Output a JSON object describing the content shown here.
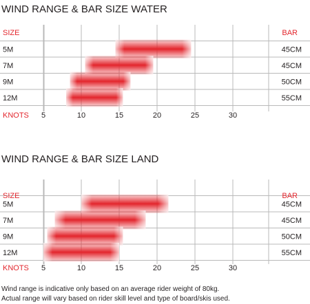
{
  "colors": {
    "accent": "#e3262d",
    "grid": "#b9b9b9",
    "text": "#231f20"
  },
  "chart_data": [
    {
      "type": "bar",
      "title": "WIND RANGE & BAR SIZE WATER",
      "row_header": "SIZE",
      "bar_header": "BAR",
      "xlabel": "KNOTS",
      "xlim": [
        0,
        30
      ],
      "x_ticks": [
        5,
        10,
        15,
        20,
        25,
        30
      ],
      "categories": [
        "5M",
        "7M",
        "9M",
        "12M"
      ],
      "ranges": [
        [
          14.5,
          24.5
        ],
        [
          10.5,
          19.5
        ],
        [
          8.5,
          16.5
        ],
        [
          8,
          15.5
        ]
      ],
      "bar_sizes": [
        "45CM",
        "45CM",
        "50CM",
        "55CM"
      ]
    },
    {
      "type": "bar",
      "title": "WIND RANGE & BAR SIZE LAND",
      "row_header": "SIZE",
      "bar_header": "BAR",
      "xlabel": "KNOTS",
      "xlim": [
        0,
        30
      ],
      "x_ticks": [
        5,
        10,
        15,
        20,
        25,
        30
      ],
      "categories": [
        "5M",
        "7M",
        "9M",
        "12M"
      ],
      "ranges": [
        [
          10,
          21.5
        ],
        [
          6.5,
          18.5
        ],
        [
          5.5,
          15.5
        ],
        [
          5,
          15
        ]
      ],
      "bar_sizes": [
        "45CM",
        "45CM",
        "50CM",
        "55CM"
      ]
    }
  ],
  "footnote": {
    "line1": "Wind range is indicative only based on an average rider weight of 80kg.",
    "line2": "Actual range will vary based on rider skill level and type of board/skis used."
  }
}
